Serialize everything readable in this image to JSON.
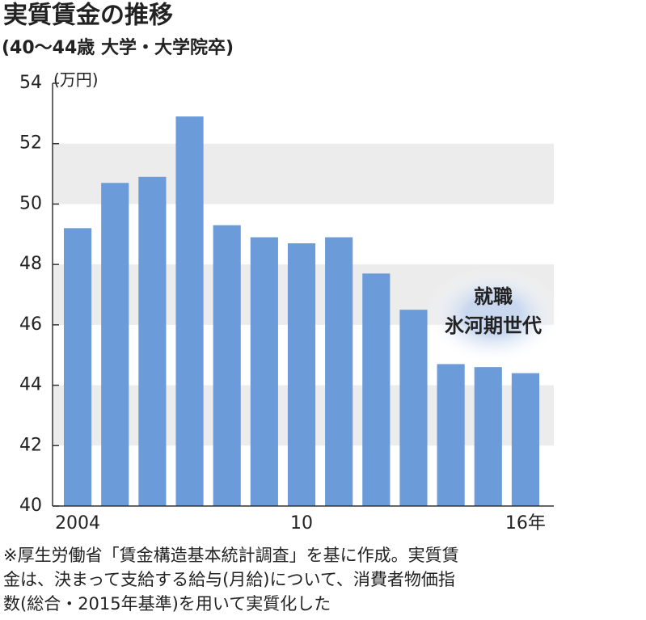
{
  "chart_data": {
    "type": "bar",
    "title": "実質賃金の推移",
    "subtitle": "(40～44歳 大学・大学院卒)",
    "y_unit": "(万円)",
    "categories": [
      "2004",
      null,
      null,
      null,
      null,
      null,
      "10",
      null,
      null,
      null,
      null,
      null,
      "16年"
    ],
    "values": [
      49.2,
      50.7,
      50.9,
      52.9,
      49.3,
      48.9,
      48.7,
      48.9,
      47.7,
      46.5,
      44.7,
      44.6,
      44.4
    ],
    "color": "#6b9bd8",
    "ylim": [
      40,
      54
    ],
    "yticks": [
      40,
      42,
      44,
      46,
      48,
      50,
      52,
      54
    ],
    "shaded_bands": true,
    "band_color": "#ececec",
    "annotation": [
      "就職",
      "氷河期世代"
    ],
    "footnote": [
      "※厚生労働省「賃金構造基本統計調査」を基に作成。実質賃",
      "金は、決まって支給する給与(月給)について、消費者物価指",
      "数(総合・2015年基準)を用いて実質化した"
    ]
  }
}
